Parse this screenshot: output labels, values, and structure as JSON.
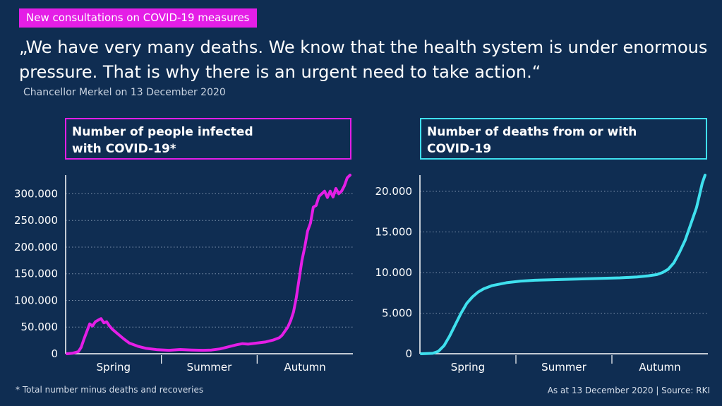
{
  "header": {
    "tag": "New consultations on COVID-19 measures",
    "quote": "„We have very many deaths. We know that the health system is under enormous pressure. That is why there is an urgent need to take action.“",
    "attribution": "Chancellor Merkel on 13 December 2020"
  },
  "footer": {
    "footnote": "* Total number minus deaths and recoveries",
    "source": "As at 13 December 2020 | Source: RKI"
  },
  "colors": {
    "background": "#0f2d52",
    "infected": "#e41ee6",
    "deaths": "#3fe0ee"
  },
  "chart_data": [
    {
      "id": "infected",
      "type": "line",
      "title": "Number of people infected with COVID-19*",
      "title_lines": [
        "Number of people infected",
        "with COVID-19*"
      ],
      "x_categories": [
        "Spring",
        "Summer",
        "Autumn"
      ],
      "y_ticks": [
        0,
        50000,
        100000,
        150000,
        200000,
        250000,
        300000
      ],
      "y_tick_labels": [
        "0",
        "50.000",
        "100.000",
        "150.000",
        "200.000",
        "250.000",
        "300.000"
      ],
      "ylim": [
        0,
        335000
      ],
      "xlim": [
        0,
        100
      ],
      "grid": "horizontal dotted",
      "series": [
        {
          "color": "#e41ee6",
          "points": [
            [
              0,
              0
            ],
            [
              2,
              1000
            ],
            [
              4,
              4000
            ],
            [
              5,
              12000
            ],
            [
              6,
              28000
            ],
            [
              7,
              42000
            ],
            [
              8,
              56000
            ],
            [
              9,
              52000
            ],
            [
              10,
              60000
            ],
            [
              11,
              63000
            ],
            [
              12,
              66000
            ],
            [
              13,
              58000
            ],
            [
              14,
              60000
            ],
            [
              15,
              52000
            ],
            [
              16,
              46000
            ],
            [
              18,
              37000
            ],
            [
              20,
              28000
            ],
            [
              22,
              20000
            ],
            [
              25,
              14000
            ],
            [
              28,
              10000
            ],
            [
              32,
              7500
            ],
            [
              36,
              6500
            ],
            [
              40,
              8000
            ],
            [
              44,
              7000
            ],
            [
              48,
              6500
            ],
            [
              51,
              7000
            ],
            [
              54,
              9000
            ],
            [
              57,
              13000
            ],
            [
              60,
              17000
            ],
            [
              62,
              19000
            ],
            [
              64,
              18000
            ],
            [
              67,
              20000
            ],
            [
              70,
              22000
            ],
            [
              73,
              26000
            ],
            [
              75,
              30000
            ],
            [
              76,
              35000
            ],
            [
              78,
              50000
            ],
            [
              79,
              62000
            ],
            [
              80,
              78000
            ],
            [
              81,
              105000
            ],
            [
              82,
              140000
            ],
            [
              83,
              175000
            ],
            [
              84,
              200000
            ],
            [
              85,
              230000
            ],
            [
              86,
              245000
            ],
            [
              87,
              275000
            ],
            [
              88,
              278000
            ],
            [
              89,
              295000
            ],
            [
              90,
              300000
            ],
            [
              91,
              305000
            ],
            [
              92,
              293000
            ],
            [
              93,
              305000
            ],
            [
              94,
              294000
            ],
            [
              95,
              310000
            ],
            [
              96,
              300000
            ],
            [
              97,
              305000
            ],
            [
              98,
              315000
            ],
            [
              99,
              330000
            ],
            [
              100,
              335000
            ]
          ]
        }
      ]
    },
    {
      "id": "deaths",
      "type": "line",
      "title": "Number of deaths from or with COVID-19",
      "title_lines": [
        "Number of deaths from or with",
        "COVID-19"
      ],
      "x_categories": [
        "Spring",
        "Summer",
        "Autumn"
      ],
      "y_ticks": [
        0,
        5000,
        10000,
        15000,
        20000
      ],
      "y_tick_labels": [
        "0",
        "5.000",
        "10.000",
        "15.000",
        "20.000"
      ],
      "ylim": [
        0,
        22000
      ],
      "xlim": [
        0,
        100
      ],
      "grid": "horizontal dotted",
      "series": [
        {
          "color": "#3fe0ee",
          "points": [
            [
              0,
              0
            ],
            [
              4,
              50
            ],
            [
              6,
              300
            ],
            [
              8,
              1000
            ],
            [
              10,
              2200
            ],
            [
              12,
              3600
            ],
            [
              14,
              5000
            ],
            [
              16,
              6200
            ],
            [
              18,
              7000
            ],
            [
              20,
              7600
            ],
            [
              22,
              8000
            ],
            [
              25,
              8400
            ],
            [
              30,
              8750
            ],
            [
              35,
              8950
            ],
            [
              40,
              9050
            ],
            [
              50,
              9150
            ],
            [
              60,
              9250
            ],
            [
              70,
              9350
            ],
            [
              76,
              9450
            ],
            [
              80,
              9600
            ],
            [
              83,
              9750
            ],
            [
              85,
              10000
            ],
            [
              87,
              10400
            ],
            [
              89,
              11200
            ],
            [
              91,
              12500
            ],
            [
              93,
              14000
            ],
            [
              95,
              16000
            ],
            [
              97,
              18000
            ],
            [
              98,
              19500
            ],
            [
              99,
              21000
            ],
            [
              100,
              22000
            ]
          ]
        }
      ]
    }
  ]
}
